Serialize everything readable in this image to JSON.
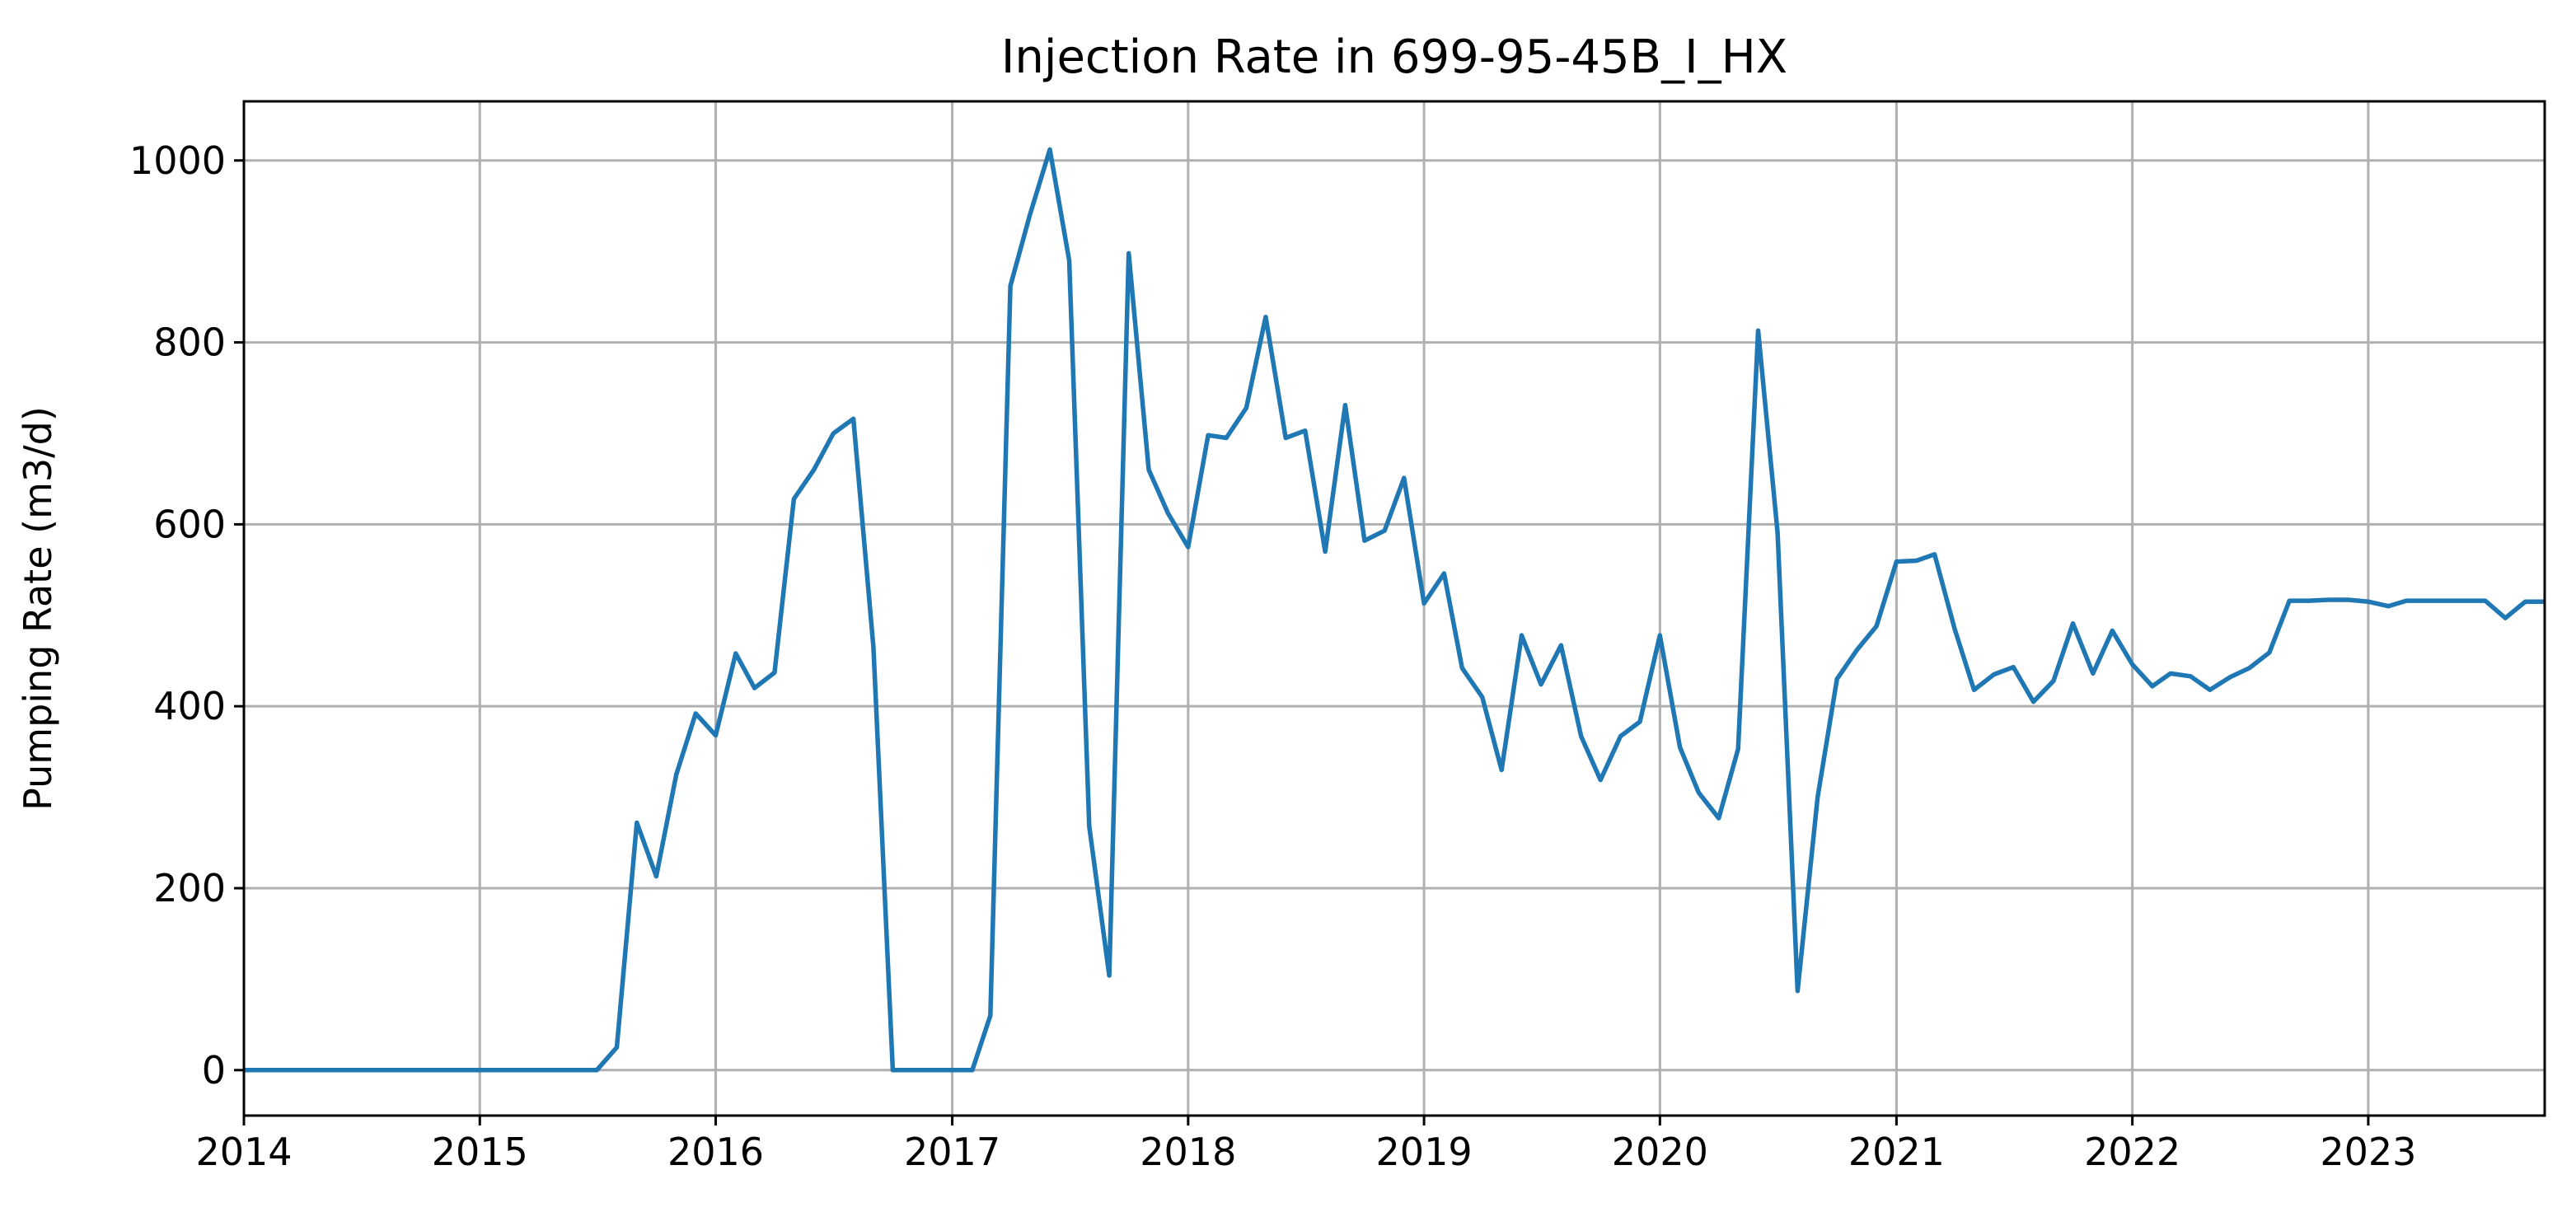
{
  "chart_data": {
    "type": "line",
    "title": "Injection Rate in 699-95-45B_I_HX",
    "xlabel": "",
    "ylabel": "Pumping Rate (m3/d)",
    "x_type": "date",
    "xlim": [
      "2014-01-01",
      "2023-10-01"
    ],
    "ylim": [
      -50,
      1065
    ],
    "grid": true,
    "x_ticks": [
      {
        "value": "2014-01-01",
        "label": "2014"
      },
      {
        "value": "2015-01-01",
        "label": "2015"
      },
      {
        "value": "2016-01-01",
        "label": "2016"
      },
      {
        "value": "2017-01-01",
        "label": "2017"
      },
      {
        "value": "2018-01-01",
        "label": "2018"
      },
      {
        "value": "2019-01-01",
        "label": "2019"
      },
      {
        "value": "2020-01-01",
        "label": "2020"
      },
      {
        "value": "2021-01-01",
        "label": "2021"
      },
      {
        "value": "2022-01-01",
        "label": "2022"
      },
      {
        "value": "2023-01-01",
        "label": "2023"
      }
    ],
    "y_ticks": [
      {
        "value": 0,
        "label": "0"
      },
      {
        "value": 200,
        "label": "200"
      },
      {
        "value": 400,
        "label": "400"
      },
      {
        "value": 600,
        "label": "600"
      },
      {
        "value": 800,
        "label": "800"
      },
      {
        "value": 1000,
        "label": "1000"
      }
    ],
    "series": [
      {
        "color": "#1f77b4",
        "x": [
          "2014-01-01",
          "2014-02-01",
          "2014-03-01",
          "2014-04-01",
          "2014-05-01",
          "2014-06-01",
          "2014-07-01",
          "2014-08-01",
          "2014-09-01",
          "2014-10-01",
          "2014-11-01",
          "2014-12-01",
          "2015-01-01",
          "2015-02-01",
          "2015-03-01",
          "2015-04-01",
          "2015-05-01",
          "2015-06-01",
          "2015-07-01",
          "2015-08-01",
          "2015-09-01",
          "2015-10-01",
          "2015-11-01",
          "2015-12-01",
          "2016-01-01",
          "2016-02-01",
          "2016-03-01",
          "2016-04-01",
          "2016-05-01",
          "2016-06-01",
          "2016-07-01",
          "2016-08-01",
          "2016-09-01",
          "2016-10-01",
          "2016-11-01",
          "2016-12-01",
          "2017-01-01",
          "2017-02-01",
          "2017-03-01",
          "2017-04-01",
          "2017-05-01",
          "2017-06-01",
          "2017-07-01",
          "2017-08-01",
          "2017-09-01",
          "2017-10-01",
          "2017-11-01",
          "2017-12-01",
          "2018-01-01",
          "2018-02-01",
          "2018-03-01",
          "2018-04-01",
          "2018-05-01",
          "2018-06-01",
          "2018-07-01",
          "2018-08-01",
          "2018-09-01",
          "2018-10-01",
          "2018-11-01",
          "2018-12-01",
          "2019-01-01",
          "2019-02-01",
          "2019-03-01",
          "2019-04-01",
          "2019-05-01",
          "2019-06-01",
          "2019-07-01",
          "2019-08-01",
          "2019-09-01",
          "2019-10-01",
          "2019-11-01",
          "2019-12-01",
          "2020-01-01",
          "2020-02-01",
          "2020-03-01",
          "2020-04-01",
          "2020-05-01",
          "2020-06-01",
          "2020-07-01",
          "2020-08-01",
          "2020-09-01",
          "2020-10-01",
          "2020-11-01",
          "2020-12-01",
          "2021-01-01",
          "2021-02-01",
          "2021-03-01",
          "2021-04-01",
          "2021-05-01",
          "2021-06-01",
          "2021-07-01",
          "2021-08-01",
          "2021-09-01",
          "2021-10-01",
          "2021-11-01",
          "2021-12-01",
          "2022-01-01",
          "2022-02-01",
          "2022-03-01",
          "2022-04-01",
          "2022-05-01",
          "2022-06-01",
          "2022-07-01",
          "2022-08-01",
          "2022-09-01",
          "2022-10-01",
          "2022-11-01",
          "2022-12-01",
          "2023-01-01",
          "2023-02-01",
          "2023-03-01",
          "2023-04-01",
          "2023-05-01",
          "2023-06-01",
          "2023-07-01",
          "2023-08-01",
          "2023-09-01",
          "2023-10-01"
        ],
        "y": [
          0,
          0,
          0,
          0,
          0,
          0,
          0,
          0,
          0,
          0,
          0,
          0,
          0,
          0,
          0,
          0,
          0,
          0,
          0,
          25,
          272,
          213,
          325,
          392,
          368,
          458,
          420,
          437,
          628,
          660,
          700,
          716,
          465,
          0,
          0,
          0,
          0,
          0,
          60,
          862,
          940,
          1012,
          890,
          268,
          104,
          898,
          660,
          612,
          575,
          698,
          695,
          728,
          828,
          695,
          703,
          570,
          731,
          582,
          593,
          651,
          513,
          546,
          442,
          410,
          330,
          478,
          424,
          467,
          367,
          319,
          367,
          383,
          478,
          355,
          305,
          277,
          353,
          813,
          591,
          87,
          300,
          430,
          462,
          488,
          559,
          560,
          567,
          485,
          418,
          435,
          443,
          405,
          428,
          491,
          436,
          483,
          446,
          422,
          436,
          433,
          418,
          432,
          442,
          459,
          516,
          516,
          517,
          517,
          515,
          510,
          516,
          516,
          516,
          516,
          516,
          497,
          515,
          515
        ]
      }
    ]
  }
}
